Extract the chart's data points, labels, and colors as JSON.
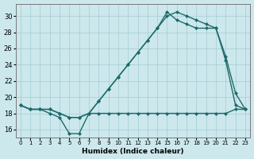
{
  "background_color": "#cce8ed",
  "grid_color": "#aacfd6",
  "line_color": "#1e6b6b",
  "xlim": [
    -0.5,
    23.5
  ],
  "ylim": [
    15.0,
    31.5
  ],
  "xticks": [
    0,
    1,
    2,
    3,
    4,
    5,
    6,
    7,
    8,
    9,
    10,
    11,
    12,
    13,
    14,
    15,
    16,
    17,
    18,
    19,
    20,
    21,
    22,
    23
  ],
  "yticks": [
    16,
    18,
    20,
    22,
    24,
    26,
    28,
    30
  ],
  "xlabel": "Humidex (Indice chaleur)",
  "line1_x": [
    0,
    1,
    2,
    3,
    4,
    5,
    6,
    7,
    8,
    9,
    10,
    11,
    12,
    13,
    14,
    15,
    16,
    17,
    18,
    19,
    20,
    21,
    22,
    23
  ],
  "line1_y": [
    19.0,
    18.5,
    18.5,
    18.0,
    17.5,
    15.5,
    15.5,
    18.0,
    18.0,
    18.0,
    18.0,
    18.0,
    18.0,
    18.0,
    18.0,
    18.0,
    18.0,
    18.0,
    18.0,
    18.0,
    18.0,
    18.0,
    18.5,
    18.5
  ],
  "line2_x": [
    0,
    1,
    2,
    3,
    4,
    5,
    6,
    7,
    8,
    9,
    10,
    11,
    12,
    13,
    14,
    15,
    16,
    17,
    18,
    19,
    20,
    21,
    22,
    23
  ],
  "line2_y": [
    19.0,
    18.5,
    18.5,
    18.5,
    18.0,
    17.5,
    17.5,
    18.0,
    19.5,
    21.0,
    22.5,
    24.0,
    25.5,
    27.0,
    28.5,
    30.0,
    30.5,
    30.0,
    29.5,
    29.0,
    28.5,
    25.0,
    20.5,
    18.5
  ],
  "line3_x": [
    0,
    1,
    2,
    3,
    4,
    5,
    6,
    7,
    8,
    9,
    10,
    11,
    12,
    13,
    14,
    15,
    16,
    17,
    18,
    19,
    20,
    21,
    22,
    23
  ],
  "line3_y": [
    19.0,
    18.5,
    18.5,
    18.5,
    18.0,
    17.5,
    17.5,
    18.0,
    19.5,
    21.0,
    22.5,
    24.0,
    25.5,
    27.0,
    28.5,
    30.5,
    29.5,
    29.0,
    28.5,
    28.5,
    28.5,
    24.5,
    19.0,
    18.5
  ]
}
